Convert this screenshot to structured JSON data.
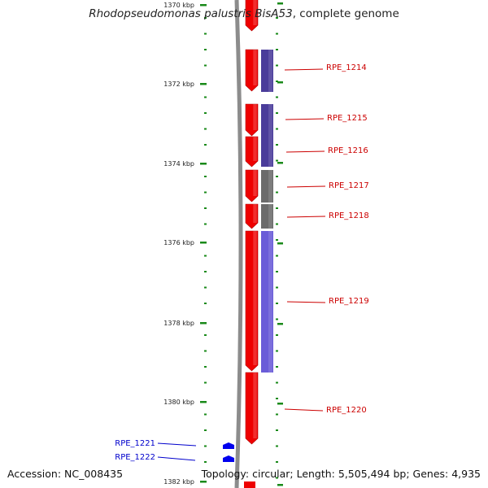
{
  "title": {
    "organism": "Rhodopseudomonas palustris BisA53",
    "suffix": ", complete genome"
  },
  "footer": {
    "accession": "Accession: NC_008435",
    "summary": "Topology: circular; Length: 5,505,494 bp; Genes: 4,935"
  },
  "colors": {
    "backbone": "#8c8c8c",
    "forward_cds": "#ee0000",
    "scale_tick": "#1a8a1a",
    "forward_label": "#cc0000",
    "reverse_label": "#0000cc",
    "cog_dark": "#4a3c9a",
    "cog_gray": "#6b6b6b",
    "cog_light": "#6a5cd8"
  },
  "scale": {
    "labels": [
      "1370 kbp",
      "1372 kbp",
      "1374 kbp",
      "1376 kbp",
      "1378 kbp",
      "1380 kbp",
      "1382 kbp"
    ]
  },
  "genes": [
    {
      "name": "RPE_1214",
      "strand": "+",
      "cog": "dark"
    },
    {
      "name": "RPE_1215",
      "strand": "+",
      "cog": "dark"
    },
    {
      "name": "RPE_1216",
      "strand": "+",
      "cog": "dark"
    },
    {
      "name": "RPE_1217",
      "strand": "+",
      "cog": "gray"
    },
    {
      "name": "RPE_1218",
      "strand": "+",
      "cog": "gray"
    },
    {
      "name": "RPE_1219",
      "strand": "+",
      "cog": "light"
    },
    {
      "name": "RPE_1220",
      "strand": "+",
      "cog": "none"
    },
    {
      "name": "RPE_1221",
      "strand": "-",
      "cog": "none"
    },
    {
      "name": "RPE_1222",
      "strand": "-",
      "cog": "none"
    }
  ]
}
